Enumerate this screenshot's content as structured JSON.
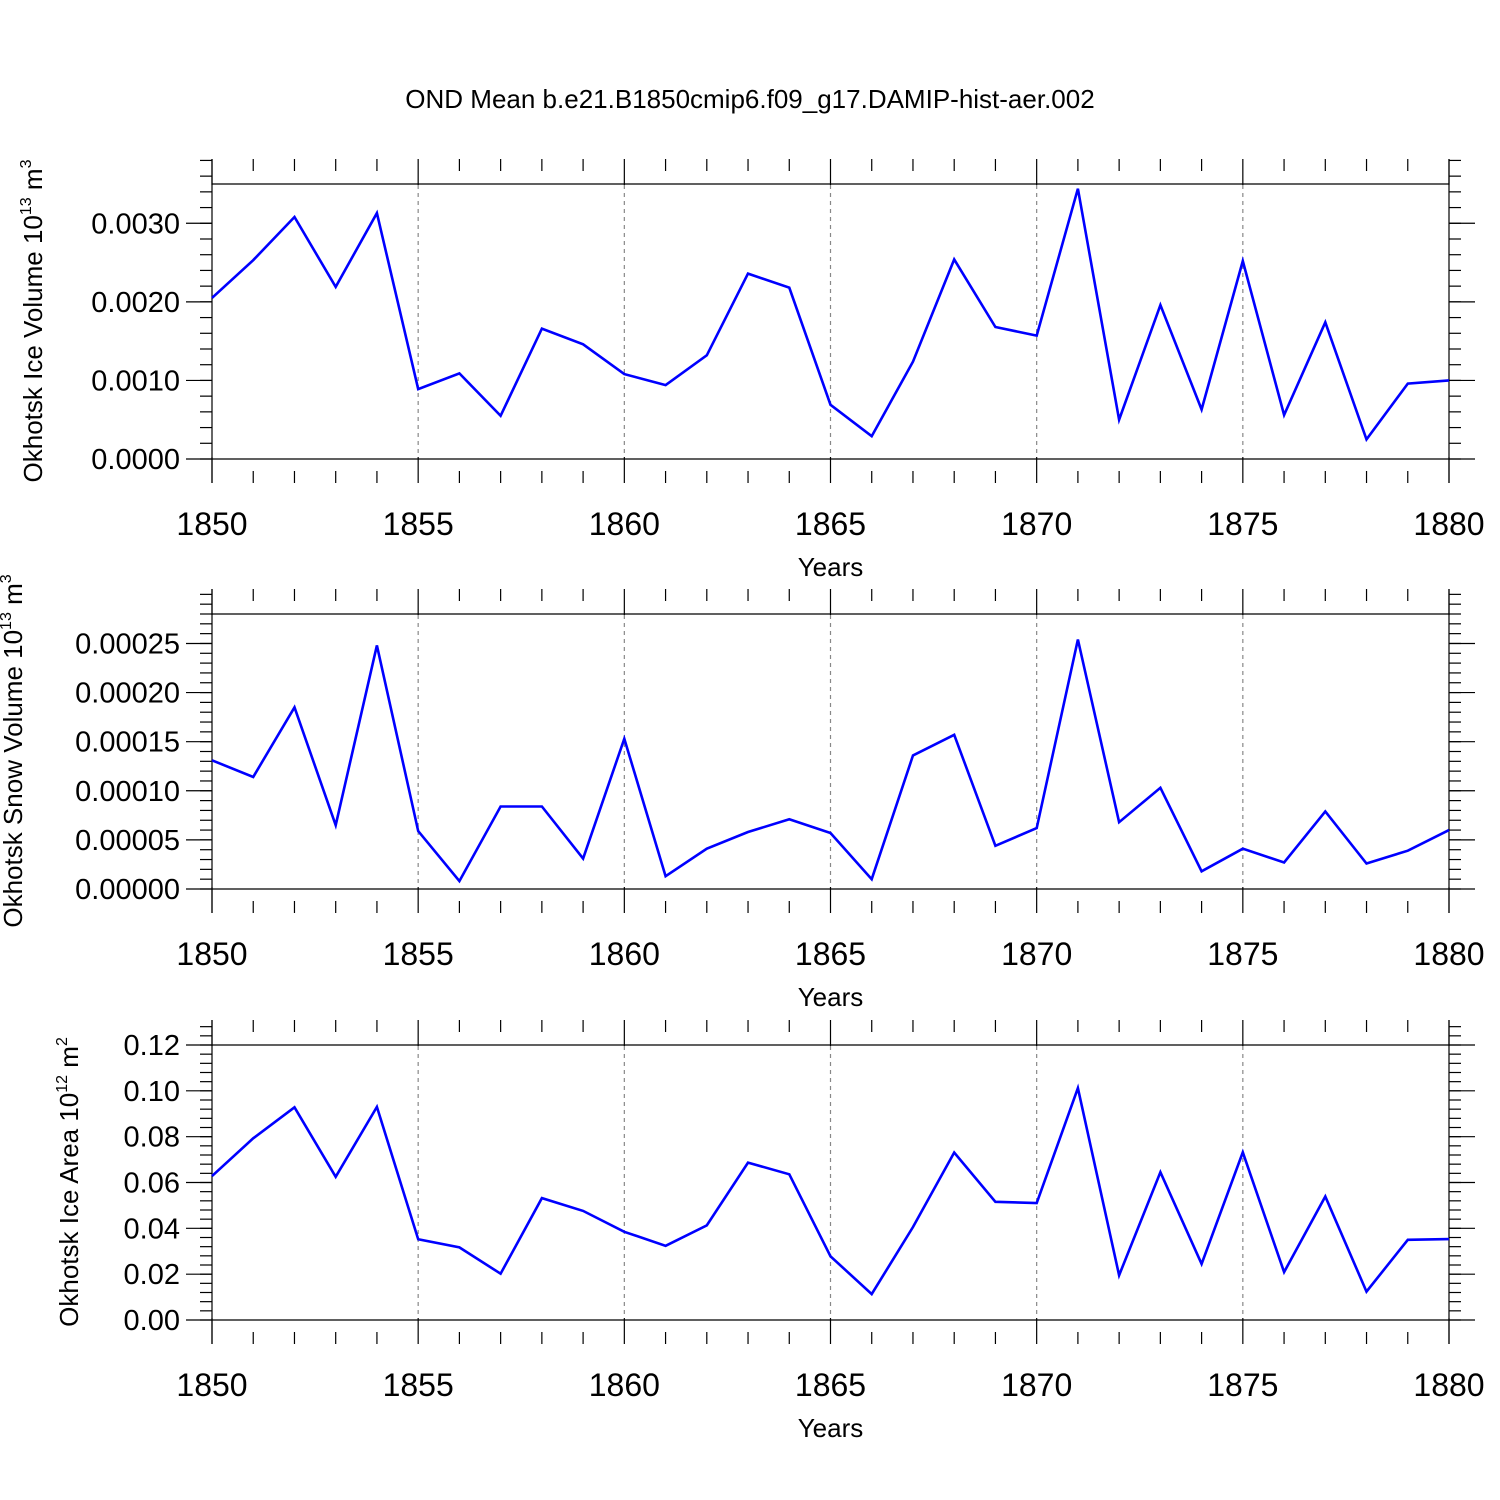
{
  "title": "OND Mean b.e21.B1850cmip6.f09_g17.DAMIP-hist-aer.002",
  "colors": {
    "line": "#0000ff",
    "axis": "#000000",
    "grid": "#888888"
  },
  "chart_data": [
    {
      "type": "line",
      "ylabel": "Okhotsk Ice Volume 10",
      "ylabel_exp": "13",
      "ylabel_unit": " m",
      "ylabel_unit_exp": "3",
      "xlabel": "Years",
      "xlim": [
        1850,
        1880
      ],
      "ylim": [
        0,
        0.0035
      ],
      "xticks": [
        "1850",
        "1855",
        "1860",
        "1865",
        "1870",
        "1875",
        "1880"
      ],
      "yticks": [
        0,
        0.001,
        0.002,
        0.003
      ],
      "ytick_labels": [
        "0.0000",
        "0.0010",
        "0.0020",
        "0.0030"
      ],
      "yminor_step": 0.0002,
      "x": [
        1850,
        1851,
        1852,
        1853,
        1854,
        1855,
        1856,
        1857,
        1858,
        1859,
        1860,
        1861,
        1862,
        1863,
        1864,
        1865,
        1866,
        1867,
        1868,
        1869,
        1870,
        1871,
        1872,
        1873,
        1874,
        1875,
        1876,
        1877,
        1878,
        1879,
        1880
      ],
      "values": [
        0.00205,
        0.00253,
        0.00308,
        0.00219,
        0.00313,
        0.00089,
        0.00109,
        0.00055,
        0.00166,
        0.00146,
        0.00108,
        0.00094,
        0.00132,
        0.00236,
        0.00218,
        0.00069,
        0.00029,
        0.00124,
        0.00254,
        0.00168,
        0.00157,
        0.00344,
        0.0005,
        0.00196,
        0.00063,
        0.00252,
        0.00056,
        0.00174,
        0.00025,
        0.00096,
        0.001
      ]
    },
    {
      "type": "line",
      "ylabel": "Okhotsk Snow Volume 10",
      "ylabel_exp": "13",
      "ylabel_unit": " m",
      "ylabel_unit_exp": "3",
      "xlabel": "Years",
      "xlim": [
        1850,
        1880
      ],
      "ylim": [
        0,
        0.00028
      ],
      "xticks": [
        "1850",
        "1855",
        "1860",
        "1865",
        "1870",
        "1875",
        "1880"
      ],
      "yticks": [
        0,
        5e-05,
        0.0001,
        0.00015,
        0.0002,
        0.00025
      ],
      "ytick_labels": [
        "0.00000",
        "0.00005",
        "0.00010",
        "0.00015",
        "0.00020",
        "0.00025"
      ],
      "yminor_step": 1e-05,
      "x": [
        1850,
        1851,
        1852,
        1853,
        1854,
        1855,
        1856,
        1857,
        1858,
        1859,
        1860,
        1861,
        1862,
        1863,
        1864,
        1865,
        1866,
        1867,
        1868,
        1869,
        1870,
        1871,
        1872,
        1873,
        1874,
        1875,
        1876,
        1877,
        1878,
        1879,
        1880
      ],
      "values": [
        0.000131,
        0.000114,
        0.000185,
        6.5e-05,
        0.000248,
        5.9e-05,
        8e-06,
        8.4e-05,
        8.4e-05,
        3.1e-05,
        0.000153,
        1.3e-05,
        4.1e-05,
        5.8e-05,
        7.1e-05,
        5.7e-05,
        1e-05,
        0.000136,
        0.000157,
        4.4e-05,
        6.2e-05,
        0.000254,
        6.8e-05,
        0.000103,
        1.8e-05,
        4.1e-05,
        2.7e-05,
        7.9e-05,
        2.6e-05,
        3.9e-05,
        6e-05
      ]
    },
    {
      "type": "line",
      "ylabel": "Okhotsk Ice Area 10",
      "ylabel_exp": "12",
      "ylabel_unit": " m",
      "ylabel_unit_exp": "2",
      "xlabel": "Years",
      "xlim": [
        1850,
        1880
      ],
      "ylim": [
        0,
        0.12
      ],
      "xticks": [
        "1850",
        "1855",
        "1860",
        "1865",
        "1870",
        "1875",
        "1880"
      ],
      "yticks": [
        0,
        0.02,
        0.04,
        0.06,
        0.08,
        0.1,
        0.12
      ],
      "ytick_labels": [
        "0.00",
        "0.02",
        "0.04",
        "0.06",
        "0.08",
        "0.10",
        "0.12"
      ],
      "yminor_step": 0.004,
      "x": [
        1850,
        1851,
        1852,
        1853,
        1854,
        1855,
        1856,
        1857,
        1858,
        1859,
        1860,
        1861,
        1862,
        1863,
        1864,
        1865,
        1866,
        1867,
        1868,
        1869,
        1870,
        1871,
        1872,
        1873,
        1874,
        1875,
        1876,
        1877,
        1878,
        1879,
        1880
      ],
      "values": [
        0.0628,
        0.0793,
        0.0928,
        0.0625,
        0.093,
        0.0352,
        0.0317,
        0.0202,
        0.0532,
        0.0476,
        0.0385,
        0.0324,
        0.0413,
        0.0687,
        0.0636,
        0.0278,
        0.0113,
        0.0406,
        0.0731,
        0.0516,
        0.051,
        0.1012,
        0.0195,
        0.0645,
        0.0245,
        0.0732,
        0.0209,
        0.0539,
        0.0124,
        0.035,
        0.0353
      ]
    }
  ]
}
